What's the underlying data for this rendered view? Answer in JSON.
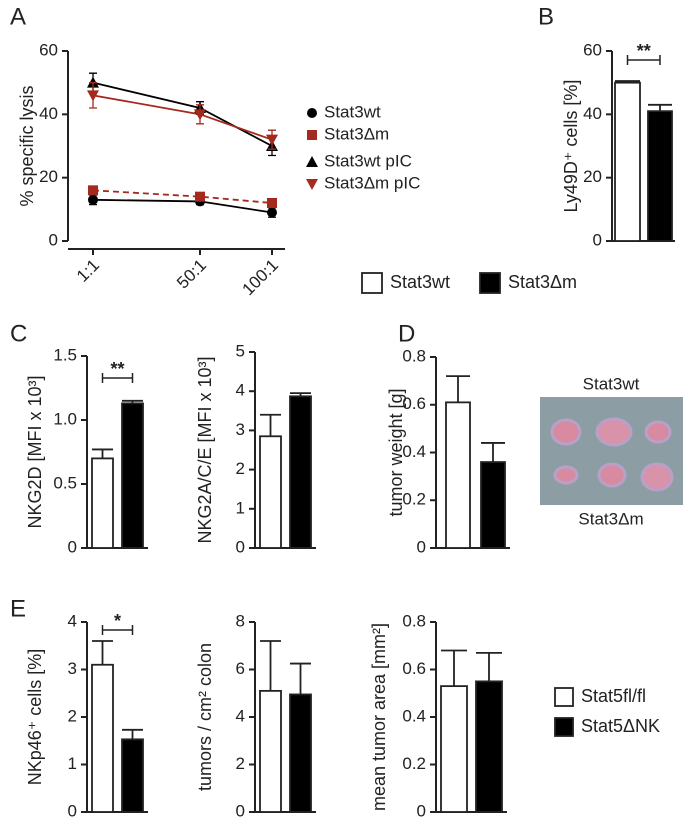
{
  "chart_data": [
    {
      "type": "line",
      "panel": "A",
      "y_label": "% specific lysis",
      "categories": [
        "1:1",
        "50:1",
        "100:1"
      ],
      "ylim": [
        0,
        60
      ],
      "yticks": [
        0,
        20,
        40,
        60
      ],
      "series": [
        {
          "name": "Stat3wt",
          "color": "#000000",
          "marker": "circle",
          "dash": false,
          "values": [
            13,
            12.5,
            9
          ],
          "errors": [
            1.5,
            1,
            1.5
          ]
        },
        {
          "name": "Stat3Δm",
          "color": "#a52a1e",
          "marker": "square",
          "dash": true,
          "values": [
            16,
            14,
            12
          ],
          "errors": [
            1,
            1,
            1
          ]
        },
        {
          "name": "Stat3wt pIC",
          "color": "#000000",
          "marker": "triangle",
          "dash": false,
          "values": [
            50,
            42,
            30
          ],
          "errors": [
            3,
            2,
            3
          ]
        },
        {
          "name": "Stat3Δm pIC",
          "color": "#a52a1e",
          "marker": "triangle-down",
          "dash": false,
          "values": [
            46,
            40,
            32
          ],
          "errors": [
            4,
            3,
            3
          ]
        }
      ]
    },
    {
      "type": "bar",
      "panel": "B",
      "y_label": "Ly49D⁺ cells [%]",
      "ylim": [
        0,
        60
      ],
      "yticks": [
        0,
        20,
        40,
        60
      ],
      "values": [
        50,
        41
      ],
      "errors": [
        0.5,
        2
      ],
      "colors": [
        "#ffffff",
        "#000000"
      ],
      "annotation": "**",
      "legend": [
        {
          "name": "Stat3wt",
          "color": "#ffffff"
        },
        {
          "name": "Stat3Δm",
          "color": "#000000"
        }
      ]
    },
    {
      "type": "bar",
      "panel": "C",
      "y_label": "NKG2D [MFI x 10³]",
      "ylim": [
        0,
        1.5
      ],
      "yticks": [
        0,
        0.5,
        {
          "value": 1,
          "label": "1.0"
        },
        1.5
      ],
      "values": [
        0.7,
        1.13
      ],
      "errors": [
        0.07,
        0.02
      ],
      "colors": [
        "#ffffff",
        "#000000"
      ],
      "annotation": "**"
    },
    {
      "type": "bar",
      "y_label": "NKG2A/C/E [MFI x 10³]",
      "ylim": [
        0,
        5
      ],
      "yticks": [
        0,
        1,
        2,
        3,
        4,
        5
      ],
      "values": [
        2.85,
        3.87
      ],
      "errors": [
        0.55,
        0.08
      ],
      "colors": [
        "#ffffff",
        "#000000"
      ]
    },
    {
      "type": "bar",
      "panel": "D",
      "y_label": "tumor weight [g]",
      "ylim": [
        0,
        0.8
      ],
      "yticks": [
        0,
        0.2,
        0.4,
        0.6,
        0.8
      ],
      "values": [
        0.61,
        0.36
      ],
      "errors": [
        0.11,
        0.08
      ],
      "colors": [
        "#ffffff",
        "#000000"
      ],
      "image_labels": [
        "Stat3wt",
        "Stat3Δm"
      ]
    },
    {
      "type": "bar",
      "panel": "E",
      "y_label": "NKp46⁺ cells [%]",
      "ylim": [
        0,
        4
      ],
      "yticks": [
        0,
        1,
        2,
        3,
        4
      ],
      "values": [
        3.1,
        1.53
      ],
      "errors": [
        0.5,
        0.2
      ],
      "colors": [
        "#ffffff",
        "#000000"
      ],
      "annotation": "*"
    },
    {
      "type": "bar",
      "y_label": "tumors / cm² colon",
      "ylim": [
        0,
        8
      ],
      "yticks": [
        0,
        2,
        4,
        6,
        8
      ],
      "values": [
        5.1,
        4.95
      ],
      "errors": [
        2.1,
        1.3
      ],
      "colors": [
        "#ffffff",
        "#000000"
      ]
    },
    {
      "type": "bar",
      "y_label": "mean tumor area [mm²]",
      "ylim": [
        0,
        0.8
      ],
      "yticks": [
        0,
        0.2,
        0.4,
        0.6,
        0.8
      ],
      "values": [
        0.53,
        0.55
      ],
      "errors": [
        0.15,
        0.12
      ],
      "colors": [
        "#ffffff",
        "#000000"
      ],
      "legend": [
        {
          "name": "Stat5fl/fl",
          "color": "#ffffff"
        },
        {
          "name": "Stat5ΔNK",
          "color": "#000000"
        }
      ]
    }
  ]
}
